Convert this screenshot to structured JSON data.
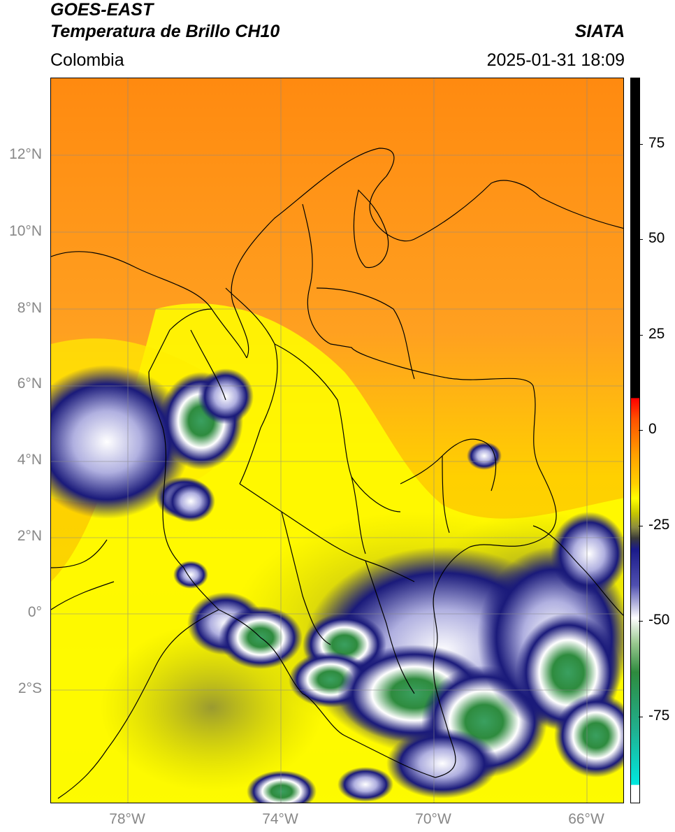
{
  "header": {
    "title_line1": "GOES-EAST",
    "title_line2": "Temperatura de Brillo CH10",
    "brand": "SIATA",
    "region": "Colombia",
    "timestamp": "2025-01-31 18:09"
  },
  "map": {
    "lat_labels": [
      "12°N",
      "10°N",
      "8°N",
      "6°N",
      "4°N",
      "2°N",
      "0°",
      "2°S"
    ],
    "lon_labels": [
      "78°W",
      "74°W",
      "70°W",
      "66°W"
    ],
    "colors": {
      "warm": "#ff8c00",
      "mid": "#ffd000",
      "yellow": "#ffff00",
      "olive": "#b8b800",
      "navy": "#1a1a7a",
      "white": "#ffffff",
      "green": "#2e8b3e",
      "teal": "#20c0a0",
      "border": "#000000",
      "grid": "#888888"
    }
  },
  "colorbar": {
    "labels": [
      "75",
      "50",
      "25",
      "0",
      "-25",
      "-50",
      "-75"
    ],
    "unit_colors": [
      "#000000",
      "#ff0000",
      "#ff9a00",
      "#ffff00",
      "#8a8a30",
      "#1a1a8a",
      "#ffffff",
      "#2e8b3e",
      "#00e0d0",
      "#ffffff"
    ]
  }
}
